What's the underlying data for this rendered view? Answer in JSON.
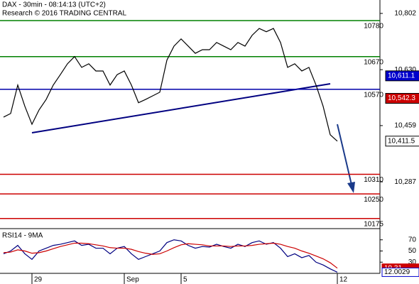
{
  "chart_data": [
    {
      "type": "line",
      "title": "DAX - 30min - 08:14:13 (UTC+2)",
      "subtitle": "Research © 2016 TRADING CENTRAL",
      "categories": [
        null,
        null,
        null,
        null,
        "29",
        null,
        null,
        null,
        null,
        null,
        null,
        null,
        null,
        null,
        null,
        null,
        null,
        "Sep",
        null,
        null,
        null,
        null,
        null,
        null,
        null,
        "5",
        null,
        null,
        null,
        null,
        null,
        null,
        null,
        null,
        null,
        null,
        null,
        null,
        null,
        null,
        null,
        null,
        null,
        null,
        null,
        null,
        null,
        "12"
      ],
      "series": [
        {
          "color": "#000000",
          "values": [
            10485,
            10496,
            10583,
            10518,
            10463,
            10507,
            10539,
            10583,
            10615,
            10648,
            10670,
            10637,
            10648,
            10626,
            10626,
            10583,
            10615,
            10626,
            10583,
            10529,
            10539,
            10550,
            10561,
            10659,
            10702,
            10724,
            10702,
            10680,
            10691,
            10691,
            10713,
            10702,
            10691,
            10713,
            10702,
            10735,
            10756,
            10746,
            10756,
            10713,
            10637,
            10648,
            10626,
            10637,
            10583,
            10518,
            10431,
            10411.5
          ]
        }
      ],
      "ylim": [
        10144,
        10843
      ],
      "yticks": [
        {
          "value": 10802,
          "label": "10,802"
        },
        {
          "value": 10630,
          "label": "10,630"
        },
        {
          "value": 10459,
          "label": "10,459"
        },
        {
          "value": 10287,
          "label": "10,287"
        }
      ],
      "levels": [
        {
          "value": 10780,
          "color": "#008000"
        },
        {
          "value": 10670,
          "color": "#008000"
        },
        {
          "value": 10570,
          "color": "#0000aa"
        },
        {
          "value": 10310,
          "color": "#cc0000"
        },
        {
          "value": 10250,
          "color": "#cc0000"
        },
        {
          "value": 10175,
          "color": "#cc0000"
        }
      ],
      "price_markers": [
        {
          "value": 10611.1,
          "label": "10,611.1",
          "color": "#0000cc"
        },
        {
          "value": 10542.3,
          "label": "10,542.3",
          "color": "#cc0000"
        },
        {
          "value": 10411.5,
          "label": "10,411.5",
          "color": "#000000"
        }
      ]
    },
    {
      "type": "line",
      "title": "RSI14 - 9MA",
      "series": [
        {
          "color": "#000080",
          "values": [
            45,
            50,
            60,
            45,
            35,
            50,
            55,
            60,
            62,
            65,
            68,
            60,
            62,
            55,
            55,
            45,
            55,
            58,
            45,
            35,
            40,
            45,
            50,
            65,
            70,
            68,
            60,
            55,
            58,
            57,
            62,
            58,
            55,
            62,
            58,
            65,
            68,
            62,
            65,
            55,
            40,
            45,
            38,
            42,
            30,
            25,
            18,
            12.0029
          ]
        },
        {
          "color": "#cc0000",
          "values": [
            47,
            48,
            52,
            50,
            46,
            47,
            50,
            54,
            58,
            61,
            64,
            64,
            63,
            61,
            59,
            56,
            55,
            55,
            53,
            49,
            46,
            44,
            45,
            50,
            56,
            61,
            63,
            62,
            61,
            59,
            59,
            59,
            58,
            59,
            59,
            60,
            62,
            63,
            64,
            62,
            58,
            55,
            50,
            46,
            41,
            36,
            29,
            19.31
          ]
        }
      ],
      "ylim": [
        10,
        90
      ],
      "yticks": [
        70,
        50,
        30
      ],
      "markers": [
        {
          "value": 19.31,
          "color": "#cc0000"
        },
        {
          "value": 12.0029,
          "color": "#0000cc"
        }
      ]
    }
  ]
}
